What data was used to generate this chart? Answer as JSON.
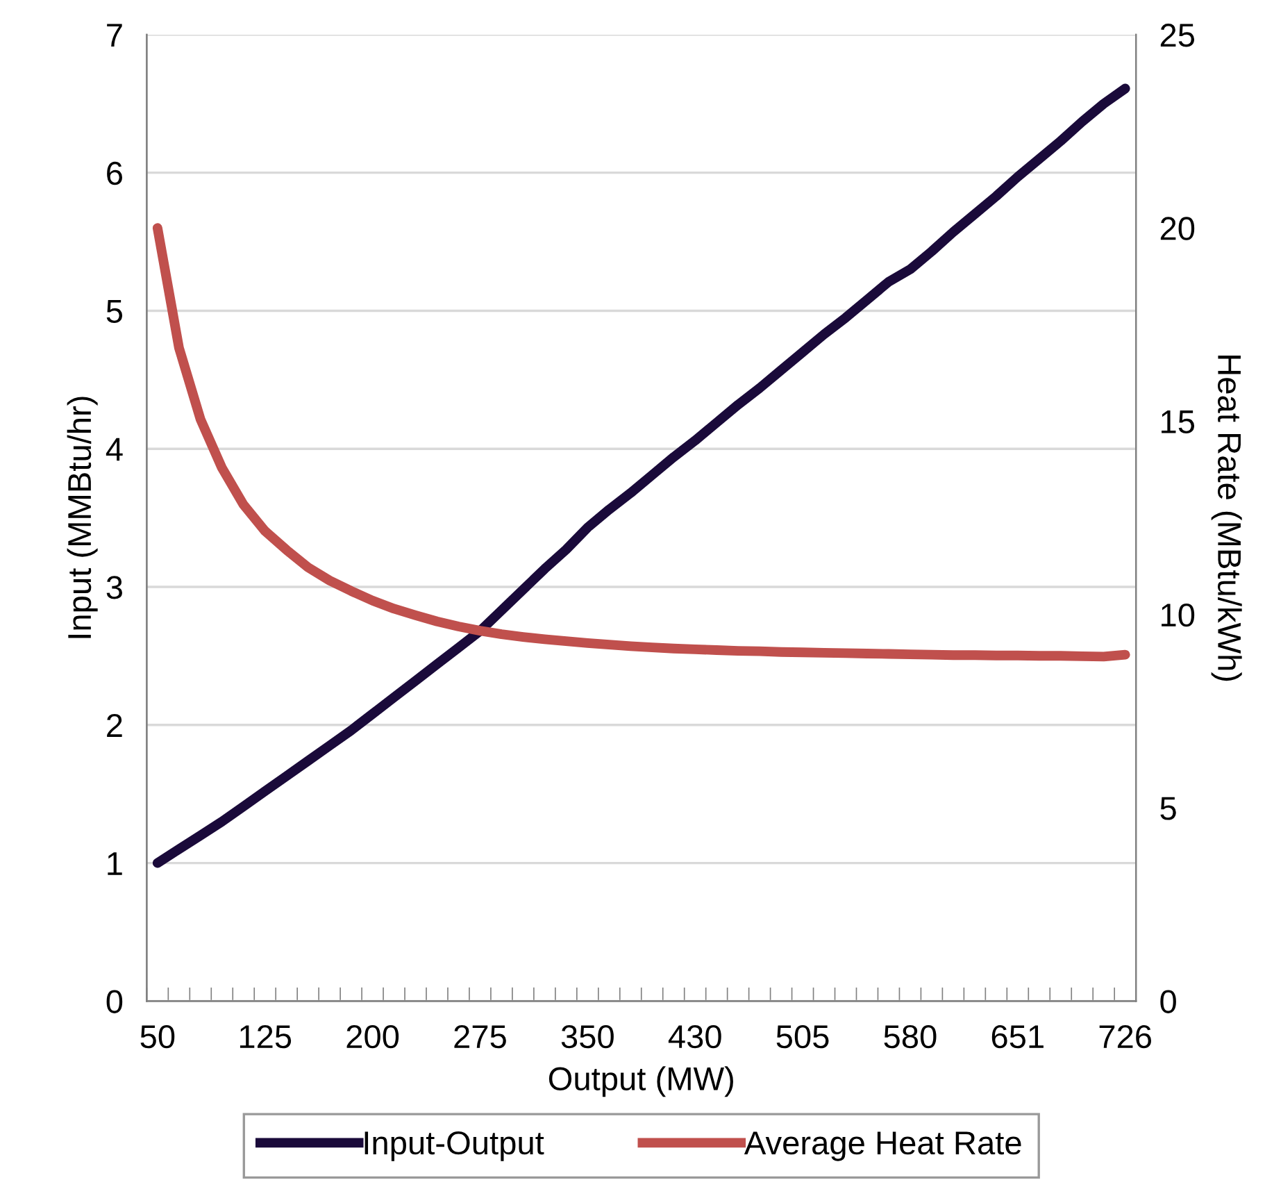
{
  "chart_data": {
    "type": "line",
    "xlabel": "Output (MW)",
    "ylabel": "Input (MMBtu/hr)",
    "y2label": "Heat Rate (MBtu/kWh)",
    "categories": [
      "50",
      null,
      null,
      null,
      null,
      "125",
      null,
      null,
      null,
      null,
      "200",
      null,
      null,
      null,
      null,
      "275",
      null,
      null,
      null,
      null,
      "350",
      null,
      null,
      null,
      null,
      "430",
      null,
      null,
      null,
      null,
      "505",
      null,
      null,
      null,
      null,
      "580",
      null,
      null,
      null,
      null,
      "651",
      null,
      null,
      null,
      null,
      "726"
    ],
    "series": [
      {
        "name": "Input-Output",
        "color": "#1a0a3a",
        "values": [
          1.0,
          1.1,
          1.2,
          1.3,
          1.41,
          1.52,
          1.63,
          1.74,
          1.85,
          1.96,
          2.08,
          2.2,
          2.32,
          2.44,
          2.56,
          2.68,
          2.83,
          2.98,
          3.13,
          3.27,
          3.43,
          3.56,
          3.68,
          3.81,
          3.94,
          4.06,
          4.19,
          4.32,
          4.44,
          4.57,
          4.7,
          4.83,
          4.95,
          5.08,
          5.21,
          5.3,
          5.43,
          5.57,
          5.7,
          5.83,
          5.97,
          6.1,
          6.23,
          6.37,
          6.5,
          6.61
        ]
      },
      {
        "name": "Average Heat Rate",
        "color": "#c0504d",
        "axis": "y2",
        "values": [
          20.0,
          16.9,
          15.05,
          13.79,
          12.84,
          12.16,
          11.67,
          11.22,
          10.88,
          10.61,
          10.36,
          10.15,
          9.98,
          9.82,
          9.69,
          9.58,
          9.49,
          9.42,
          9.36,
          9.31,
          9.26,
          9.22,
          9.18,
          9.15,
          9.12,
          9.1,
          9.08,
          9.06,
          9.05,
          9.03,
          9.02,
          9.01,
          9.0,
          8.99,
          8.98,
          8.97,
          8.96,
          8.95,
          8.95,
          8.94,
          8.94,
          8.93,
          8.93,
          8.92,
          8.91,
          8.96
        ]
      }
    ],
    "ylim": [
      0,
      7
    ],
    "yticks": [
      0,
      1,
      2,
      3,
      4,
      5,
      6,
      7
    ],
    "y2lim": [
      0,
      25
    ],
    "y2ticks": [
      0,
      5,
      10,
      15,
      20,
      25
    ],
    "grid": "y",
    "legend": "bottom",
    "marker": "none",
    "line_style": "solid"
  }
}
